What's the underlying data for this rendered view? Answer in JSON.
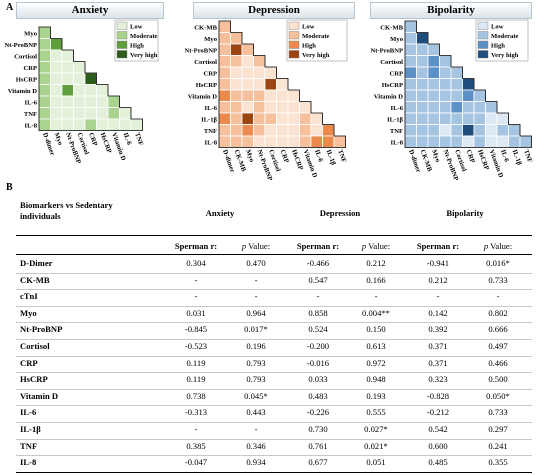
{
  "panel_a_label": "A",
  "panel_b_label": "B",
  "heatmap_titles": [
    "Anxiety",
    "Depression",
    "Bipolarity"
  ],
  "legend_labels": [
    "Low",
    "Moderate",
    "High",
    "Very high"
  ],
  "biomarkers": [
    "D-dimer",
    "CK-MB",
    "Myo",
    "Nt-ProBNP",
    "Cortisol",
    "CRP",
    "HsCRP",
    "Vitamin D",
    "IL-6",
    "IL-1β",
    "TNF",
    "IL-8"
  ],
  "heatmaps": [
    {
      "name": "Anxiety",
      "row_labels": [
        "Myo",
        "Nt-ProBNP",
        "Cortisol",
        "CRP",
        "HsCRP",
        "Vitamin D",
        "IL-6",
        "TNF",
        "IL-8"
      ],
      "col_labels": [
        "D-dimer",
        "Myo",
        "Nt-ProBNP",
        "Cortisol",
        "CRP",
        "HsCRP",
        "Vitamin D",
        "IL-6",
        "TNF"
      ],
      "palette": [
        "#e3f1da",
        "#a9d38e",
        "#5e9e3c",
        "#2c5d1d"
      ],
      "levels": [
        [
          1
        ],
        [
          1,
          2
        ],
        [
          1,
          0,
          0
        ],
        [
          1,
          0,
          0,
          0
        ],
        [
          1,
          0,
          0,
          0,
          3
        ],
        [
          1,
          0,
          2,
          0,
          0,
          0
        ],
        [
          1,
          0,
          0,
          0,
          0,
          0,
          1
        ],
        [
          1,
          0,
          0,
          0,
          0,
          0,
          1,
          0
        ],
        [
          1,
          0,
          0,
          0,
          1,
          0,
          0,
          0,
          0
        ]
      ]
    },
    {
      "name": "Depression",
      "row_labels": [
        "CK-MB",
        "Myo",
        "Nt-ProBNP",
        "Cortisol",
        "CRP",
        "HsCRP",
        "Vitamin D",
        "IL-6",
        "IL-1β",
        "TNF",
        "IL-8"
      ],
      "col_labels": [
        "D-dimer",
        "CK-MB",
        "Myo",
        "Nt-ProBNP",
        "Cortisol",
        "CRP",
        "HsCRP",
        "Vitamin D",
        "IL-6",
        "IL-1β",
        "TNF"
      ],
      "palette": [
        "#fbe3d2",
        "#f6c09c",
        "#ec8a4e",
        "#9c4513"
      ],
      "levels": [
        [
          1
        ],
        [
          1,
          1
        ],
        [
          1,
          3,
          1
        ],
        [
          1,
          1,
          0,
          1
        ],
        [
          1,
          0,
          0,
          0,
          0
        ],
        [
          1,
          0,
          0,
          0,
          3,
          0
        ],
        [
          2,
          1,
          1,
          1,
          0,
          0,
          0
        ],
        [
          1,
          1,
          0,
          1,
          0,
          0,
          0,
          0
        ],
        [
          2,
          1,
          3,
          1,
          1,
          0,
          0,
          1,
          0
        ],
        [
          1,
          1,
          2,
          1,
          0,
          0,
          0,
          1,
          0,
          2
        ],
        [
          1,
          1,
          1,
          0,
          0,
          0,
          0,
          1,
          2,
          2,
          1
        ]
      ]
    },
    {
      "name": "Bipolarity",
      "row_labels": [
        "CK-MB",
        "Myo",
        "Nt-ProBNP",
        "Cortisol",
        "CRP",
        "HsCRP",
        "Vitamin D",
        "IL-6",
        "IL-1β",
        "TNF",
        "IL-8"
      ],
      "col_labels": [
        "D-dimer",
        "CK-MB",
        "Myo",
        "Nt-ProBNP",
        "Cortisol",
        "CRP",
        "HsCRP",
        "Vitamin D",
        "IL-6",
        "IL-1β",
        "TNF"
      ],
      "palette": [
        "#dce8f3",
        "#a4c4e2",
        "#5c90c6",
        "#1f4e7e"
      ],
      "levels": [
        [
          1
        ],
        [
          1,
          3
        ],
        [
          1,
          1,
          1
        ],
        [
          1,
          1,
          2,
          1
        ],
        [
          2,
          1,
          2,
          1,
          1
        ],
        [
          1,
          1,
          1,
          1,
          1,
          3
        ],
        [
          1,
          1,
          1,
          1,
          1,
          2,
          1
        ],
        [
          1,
          1,
          1,
          1,
          2,
          1,
          1,
          1
        ],
        [
          1,
          1,
          1,
          1,
          1,
          1,
          1,
          0,
          0
        ],
        [
          1,
          1,
          1,
          0,
          1,
          3,
          1,
          0,
          1,
          1
        ],
        [
          1,
          1,
          1,
          1,
          1,
          0,
          1,
          0,
          0,
          1,
          1
        ]
      ]
    }
  ],
  "table": {
    "corner_label": "Biomarkers vs Sedentary individuals",
    "groups": [
      "Anxiety",
      "Depression",
      "Bipolarity"
    ],
    "sub_headers": [
      "Sperman r:",
      "p Value:"
    ],
    "rows": [
      {
        "name": "D-Dimer",
        "vals": [
          "0.304",
          "0.470",
          "-0.466",
          "0.212",
          "-0.941",
          "0.016*"
        ]
      },
      {
        "name": "CK-MB",
        "vals": [
          "-",
          "-",
          "0.547",
          "0.166",
          "0.212",
          "0.733"
        ]
      },
      {
        "name": "cTnI",
        "vals": [
          "-",
          "-",
          "-",
          "-",
          "-",
          "-"
        ]
      },
      {
        "name": "Myo",
        "vals": [
          "0.031",
          "0.964",
          "0.858",
          "0.004**",
          "0.142",
          "0.802"
        ]
      },
      {
        "name": "Nt-ProBNP",
        "vals": [
          "-0.845",
          "0.017*",
          "0.524",
          "0.150",
          "0.392",
          "0.666"
        ]
      },
      {
        "name": "Cortisol",
        "vals": [
          "-0.523",
          "0.196",
          "-0.200",
          "0.613",
          "0.371",
          "0.497"
        ]
      },
      {
        "name": "CRP",
        "vals": [
          "0.119",
          "0.793",
          "-0.016",
          "0.972",
          "0.371",
          "0.466"
        ]
      },
      {
        "name": "HsCRP",
        "vals": [
          "0.119",
          "0.793",
          "0.033",
          "0.948",
          "0.323",
          "0.500"
        ]
      },
      {
        "name": "Vitamin D",
        "vals": [
          "0.738",
          "0.045*",
          "0.483",
          "0.193",
          "-0.828",
          "0.050*"
        ]
      },
      {
        "name": "IL-6",
        "vals": [
          "-0.313",
          "0.443",
          "-0.226",
          "0.555",
          "-0.212",
          "0.733"
        ]
      },
      {
        "name": "IL-1β",
        "vals": [
          "-",
          "-",
          "0.730",
          "0.027*",
          "0.542",
          "0.297"
        ]
      },
      {
        "name": "TNF",
        "vals": [
          "0.385",
          "0.346",
          "0.761",
          "0.021*",
          "0.600",
          "0.241"
        ]
      },
      {
        "name": "IL-8",
        "vals": [
          "-0.047",
          "0.934",
          "0.677",
          "0.051",
          "0.485",
          "0.355"
        ]
      }
    ]
  }
}
